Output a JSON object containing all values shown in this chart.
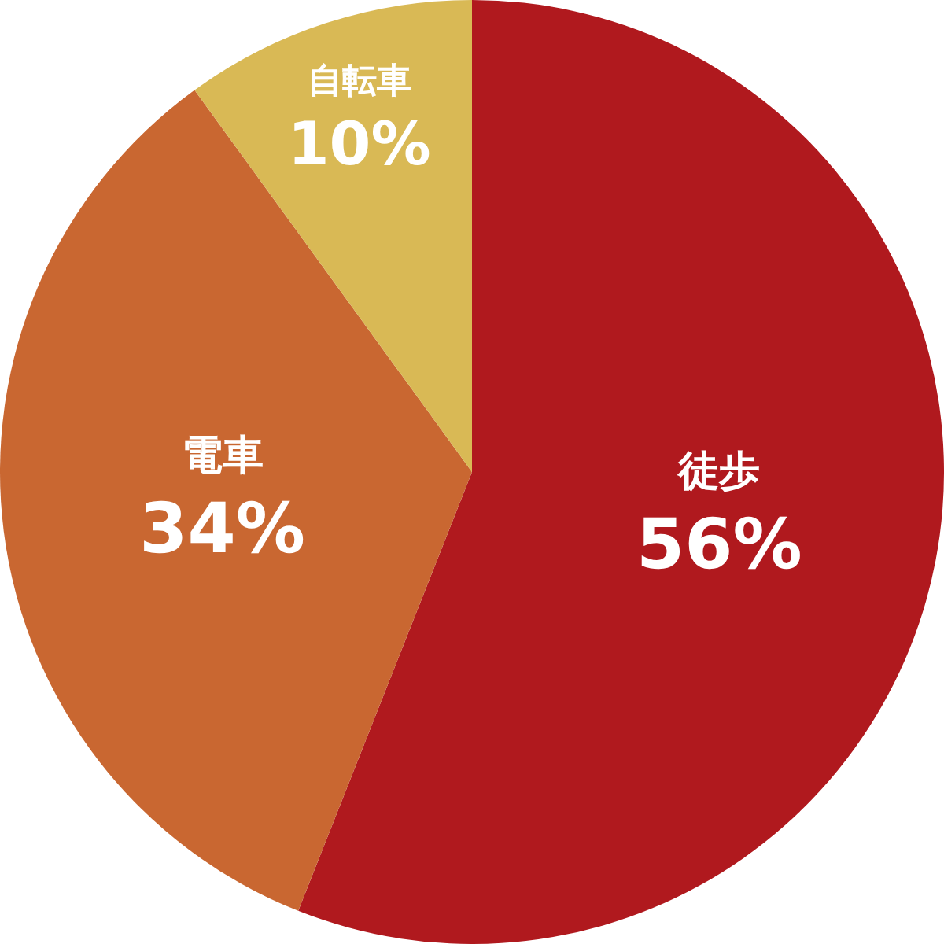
{
  "chart_data": {
    "type": "pie",
    "categories": [
      "徒歩",
      "電車",
      "自転車"
    ],
    "values": [
      56,
      34,
      10
    ],
    "colors": [
      "#b0191e",
      "#c96731",
      "#d9b955"
    ],
    "value_labels": [
      "56%",
      "34%",
      "10%"
    ]
  }
}
